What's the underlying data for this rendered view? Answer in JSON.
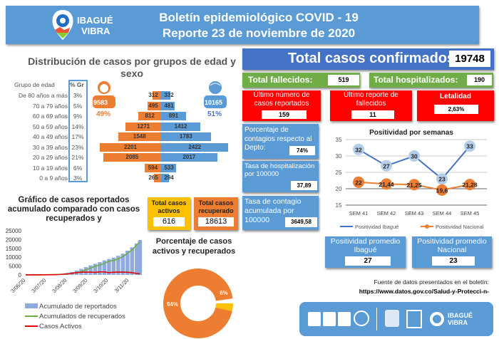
{
  "header": {
    "logo_text": [
      "IBAGUÉ",
      "VIBRA"
    ],
    "title": "Boletín epidemiológico COVID - 19",
    "subtitle": "Reporte 23 de noviembre de 2020",
    "color": "#5b9bd5"
  },
  "pyramid": {
    "title": "Distribución de casos por grupos de edad y sexo",
    "col_group": "Grupo de edad",
    "col_pct": "% Gr",
    "female": {
      "total": "9583",
      "pct": "49%",
      "color": "#ed7d31"
    },
    "male": {
      "total": "10165",
      "pct": "51%",
      "color": "#5b9bd5"
    },
    "rows": [
      {
        "label": "De 80 años a más",
        "pct": "3%",
        "female": 312,
        "male": 332
      },
      {
        "label": "70 a 79 años",
        "pct": "5%",
        "female": 495,
        "male": 481
      },
      {
        "label": "60 a 69 años",
        "pct": "9%",
        "female": 812,
        "male": 891
      },
      {
        "label": "50 a 59 años",
        "pct": "14%",
        "female": 1271,
        "male": 1412
      },
      {
        "label": "40 a 49 años",
        "pct": "17%",
        "female": 1548,
        "male": 1783
      },
      {
        "label": "30 a 39 años",
        "pct": "23%",
        "female": 2201,
        "male": 2422
      },
      {
        "label": "20 a 29 años",
        "pct": "21%",
        "female": 2085,
        "male": 2017
      },
      {
        "label": "10 a 19 años",
        "pct": "6%",
        "female": 594,
        "male": 533
      },
      {
        "label": "0 a 9 años",
        "pct": "3%",
        "female": 265,
        "male": 294
      }
    ]
  },
  "kpis": {
    "total_confirmed": {
      "label": "Total casos confirmados:",
      "value": "19748"
    },
    "deaths": {
      "label": "Total fallecidos:",
      "value": "519"
    },
    "hospitalized": {
      "label": "Total hospitalizados:",
      "value": "190"
    },
    "last_cases": {
      "label": "Último número de casos reportados",
      "value": "159"
    },
    "last_deaths": {
      "label": "Último reporte de fallecidos",
      "value": "11"
    },
    "lethality": {
      "label": "Letalidad",
      "value": "2,63%"
    },
    "pct_dept": {
      "label": "Porcentaje de contagios respecto al Depto:",
      "value": "74%"
    },
    "hosp_rate": {
      "label": "Tasa de hospitalización por 100000",
      "value": "37,89"
    },
    "contagion_rate": {
      "label": "Tasa de contagio acumulada por 100000",
      "value": "3649,58"
    },
    "active": {
      "label": "Total casos activos",
      "value": "616"
    },
    "recovered": {
      "label": "Total casos recuperado",
      "value": "18613"
    },
    "avg_ibague": {
      "label": "Positividad promedio Ibagué",
      "value": "27"
    },
    "avg_national": {
      "label": "Positividad promedio Nacional",
      "value": "23"
    }
  },
  "source": {
    "label": "Fuente de datos presentados en el boletín:",
    "url": "https://www.datos.gov.co/Salud-y-Protecci-n-"
  },
  "colors": {
    "blue": "#5b9bd5",
    "dark_blue": "#4472c4",
    "green": "#70ad47",
    "red": "#ff0000",
    "yellow": "#ffc000",
    "orange": "#ed7d31"
  },
  "chart_data": [
    {
      "type": "line",
      "title": "Positividad por semanas",
      "categories": [
        "SEM 41",
        "SEM 42",
        "SEM 43",
        "SEM 44",
        "SEM 45"
      ],
      "ylim": [
        15,
        35
      ],
      "yticks": [
        15,
        20,
        25,
        30,
        35
      ],
      "grid": true,
      "legend": "bottom",
      "series": [
        {
          "name": "Positividad Ibagué",
          "values": [
            32,
            27,
            30,
            23,
            33
          ],
          "labels": [
            "32",
            "27",
            "30",
            "23",
            "33"
          ],
          "color": "#4472c4"
        },
        {
          "name": "Positividad Nacional",
          "values": [
            22,
            21.44,
            21.25,
            19.6,
            21.28
          ],
          "labels": [
            "22",
            "21,44",
            "21,25",
            "19,6",
            "21,28"
          ],
          "color": "#ed7d31"
        }
      ]
    },
    {
      "type": "bar+line",
      "title": "Gráfico de casos reportados acumulado comparado con casos recuperados y",
      "ylim": [
        0,
        25000
      ],
      "yticks": [
        0,
        5000,
        10000,
        15000,
        20000,
        25000
      ],
      "legend": "bottom",
      "xticks": [
        "3/06/20",
        "3/07/20",
        "3/08/20",
        "3/09/20",
        "3/10/20",
        "3/11/20"
      ],
      "x": [
        "2020-06-03",
        "2020-06-10",
        "2020-06-17",
        "2020-06-24",
        "2020-07-01",
        "2020-07-08",
        "2020-07-15",
        "2020-07-22",
        "2020-07-29",
        "2020-08-05",
        "2020-08-12",
        "2020-08-19",
        "2020-08-26",
        "2020-09-02",
        "2020-09-09",
        "2020-09-16",
        "2020-09-23",
        "2020-09-30",
        "2020-10-07",
        "2020-10-14",
        "2020-10-21",
        "2020-10-28",
        "2020-11-04",
        "2020-11-11",
        "2020-11-18",
        "2020-11-23"
      ],
      "series": [
        {
          "name": "Acumulado de reportados",
          "type": "bar",
          "color": "#8faadc",
          "values": [
            30,
            40,
            60,
            90,
            130,
            200,
            300,
            450,
            700,
            1100,
            1700,
            2500,
            3400,
            4400,
            5400,
            6300,
            7200,
            8200,
            9000,
            9800,
            10800,
            12000,
            13700,
            15600,
            17800,
            19748
          ]
        },
        {
          "name": "Acumulados de recuperados",
          "type": "line",
          "color": "#70ad47",
          "values": [
            10,
            20,
            30,
            50,
            80,
            120,
            180,
            250,
            350,
            500,
            800,
            1200,
            1900,
            2800,
            3800,
            4900,
            5500,
            6500,
            7700,
            8200,
            9000,
            10300,
            12000,
            14100,
            16800,
            18613
          ]
        },
        {
          "name": "Casos Activos",
          "type": "line",
          "color": "#e00000",
          "values": [
            20,
            20,
            30,
            40,
            50,
            80,
            120,
            200,
            350,
            600,
            900,
            1300,
            1500,
            1600,
            1600,
            1400,
            1700,
            1700,
            1300,
            1500,
            1600,
            1600,
            1500,
            1300,
            800,
            616
          ]
        }
      ]
    },
    {
      "type": "pie",
      "title": "Porcentaje de casos activos y recuperados",
      "slices": [
        {
          "name": "Recuperados",
          "value": 94,
          "label": "94%",
          "color": "#ed7d31"
        },
        {
          "name": "Activos",
          "value": 6,
          "label": "6%",
          "color": "#ffc000"
        }
      ]
    }
  ]
}
